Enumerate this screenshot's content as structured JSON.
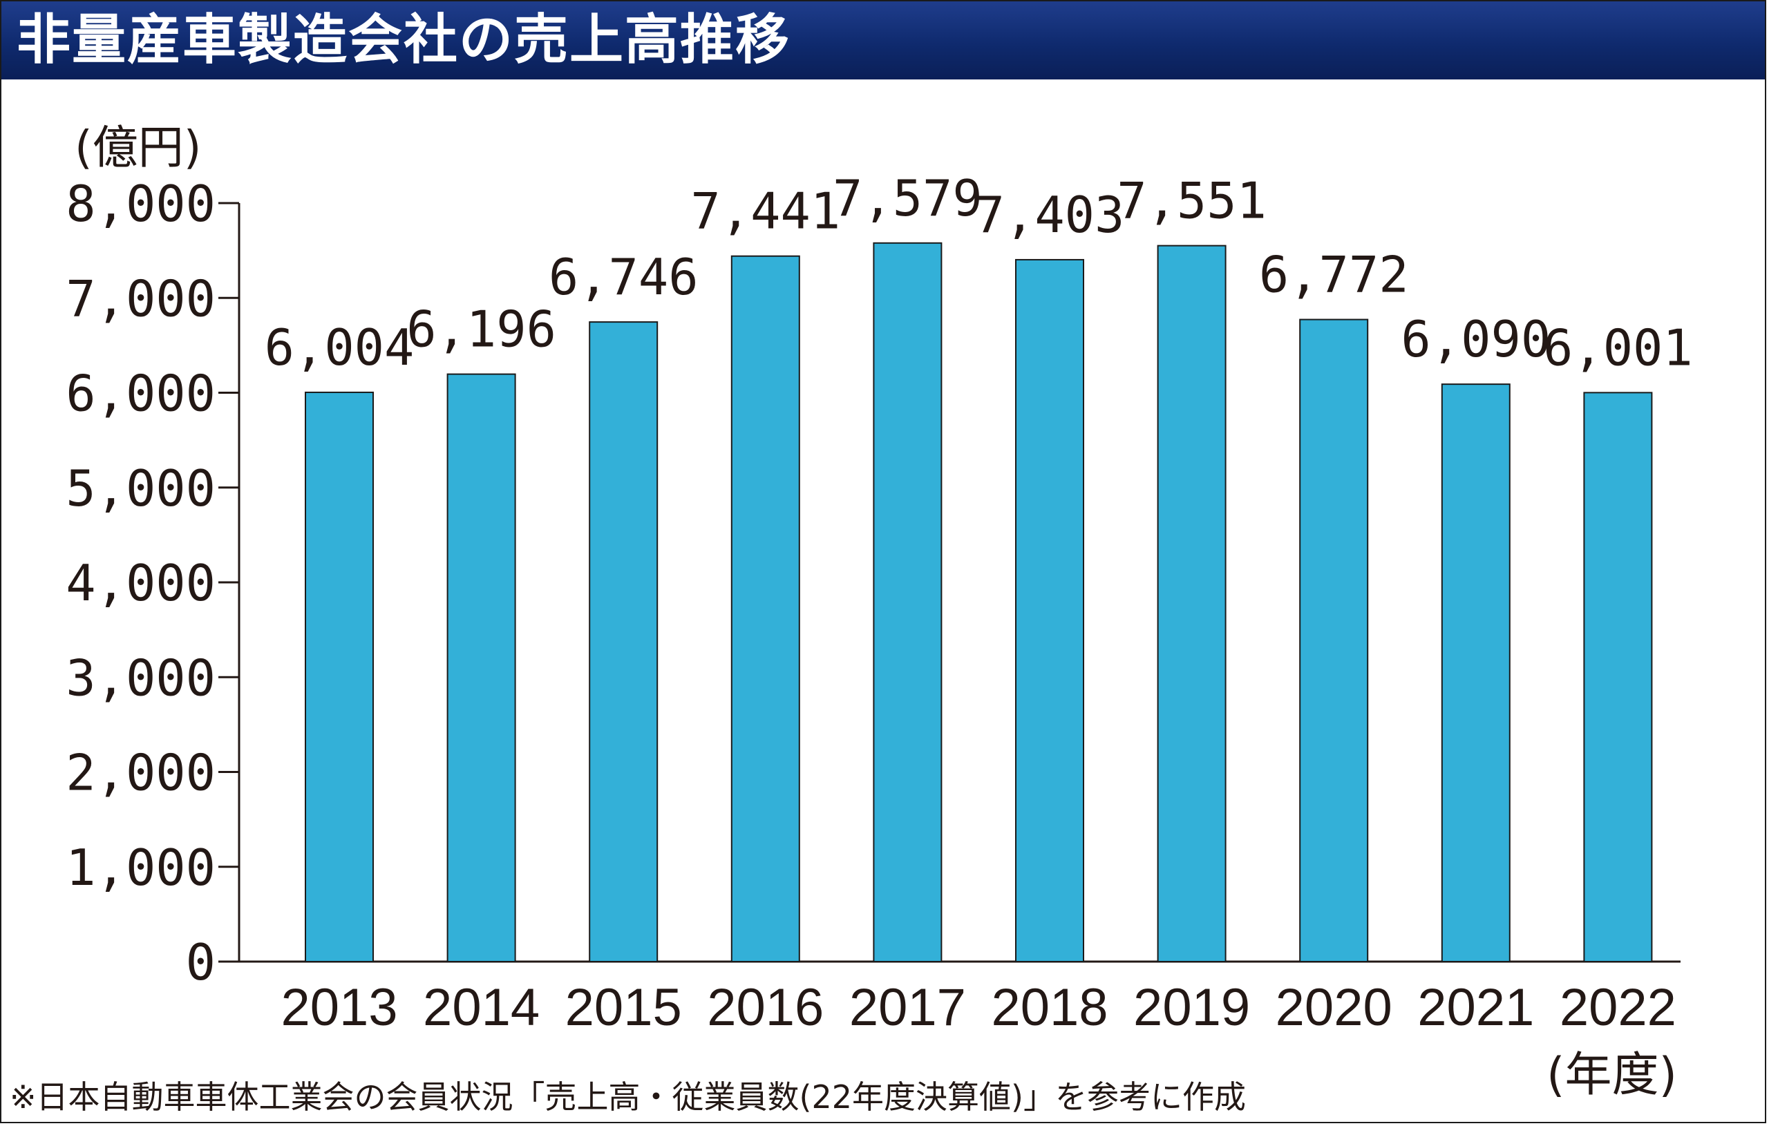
{
  "header": {
    "title": "非量産車製造会社の売上高推移"
  },
  "colors": {
    "bar": "#33b0d8",
    "bar_stroke": "#1a1a1a",
    "title_bg": "#0f2a6e",
    "axis": "#231815"
  },
  "footer": {
    "note": "※日本自動車車体工業会の会員状況「売上高・従業員数(22年度決算値)」を参考に作成"
  },
  "chart_data": {
    "type": "bar",
    "title": "非量産車製造会社の売上高推移",
    "ylabel": "(億円)",
    "xlabel": "(年度)",
    "categories": [
      "2013",
      "2014",
      "2015",
      "2016",
      "2017",
      "2018",
      "2019",
      "2020",
      "2021",
      "2022"
    ],
    "values": [
      6004,
      6196,
      6746,
      7441,
      7579,
      7403,
      7551,
      6772,
      6090,
      6001
    ],
    "value_labels": [
      "6,004",
      "6,196",
      "6,746",
      "7,441",
      "7,579",
      "7,403",
      "7,551",
      "6,772",
      "6,090",
      "6,001"
    ],
    "ylim": [
      0,
      8000
    ],
    "yticks": [
      0,
      1000,
      2000,
      3000,
      4000,
      5000,
      6000,
      7000,
      8000
    ],
    "ytick_labels": [
      "0",
      "1,000",
      "2,000",
      "3,000",
      "4,000",
      "5,000",
      "6,000",
      "7,000",
      "8,000"
    ],
    "grid": false,
    "legend": "none"
  }
}
